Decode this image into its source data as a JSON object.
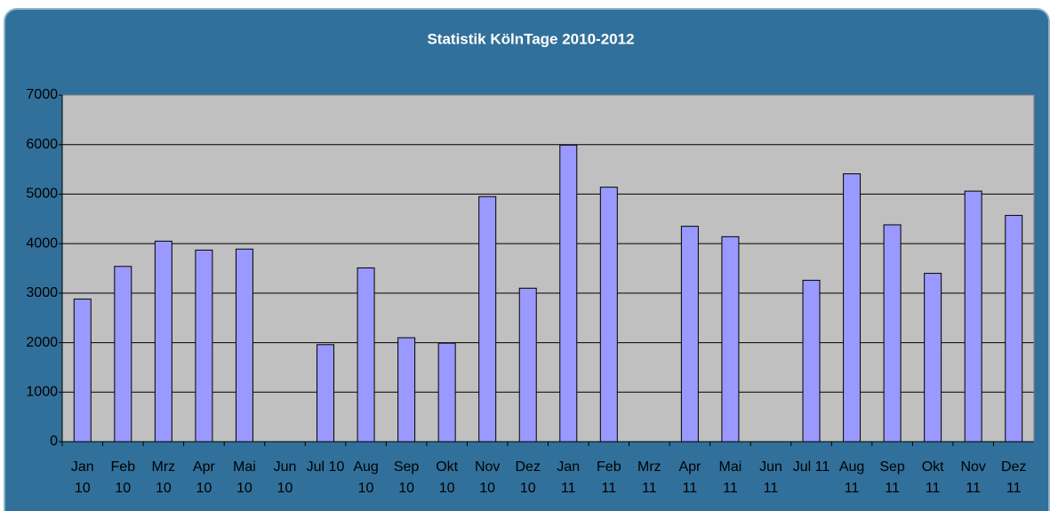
{
  "chart_data": {
    "type": "bar",
    "title": "Statistik KölnTage 2010-2012",
    "categories": [
      "Jan 10",
      "Feb 10",
      "Mrz 10",
      "Apr 10",
      "Mai 10",
      "Jun 10",
      "Jul 10",
      "Aug 10",
      "Sep 10",
      "Okt 10",
      "Nov 10",
      "Dez 10",
      "Jan 11",
      "Feb 11",
      "Mrz 11",
      "Apr 11",
      "Mai 11",
      "Jun 11",
      "Jul 11",
      "Aug 11",
      "Sep 11",
      "Okt 11",
      "Nov 11",
      "Dez 11"
    ],
    "values": [
      2880,
      3540,
      4050,
      3870,
      3890,
      null,
      1960,
      3510,
      2100,
      1990,
      4950,
      3100,
      5990,
      5140,
      null,
      4350,
      4140,
      null,
      3260,
      5410,
      4380,
      3400,
      5060,
      4570
    ],
    "color": "#9999ff",
    "ylim": [
      0,
      7000
    ],
    "yticks": [
      0,
      1000,
      2000,
      3000,
      4000,
      5000,
      6000,
      7000
    ],
    "grid": true
  }
}
